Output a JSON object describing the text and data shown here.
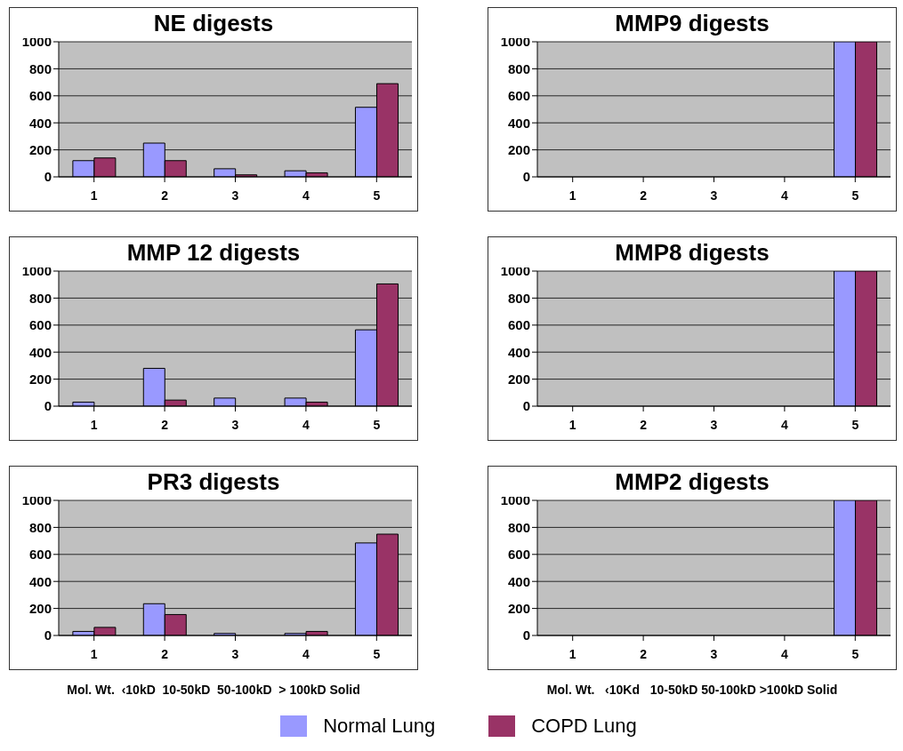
{
  "chart_data": [
    {
      "type": "bar",
      "title": "NE digests",
      "categories": [
        "1",
        "2",
        "3",
        "4",
        "5"
      ],
      "series": [
        {
          "color": "#9999ff",
          "values": [
            120,
            250,
            60,
            45,
            515
          ]
        },
        {
          "color": "#993366",
          "values": [
            140,
            120,
            15,
            30,
            690
          ]
        }
      ],
      "ylim": [
        0,
        1000
      ],
      "yticks": [
        0,
        200,
        400,
        600,
        800,
        1000
      ],
      "grid": "y"
    },
    {
      "type": "bar",
      "title": "MMP9 digests",
      "categories": [
        "1",
        "2",
        "3",
        "4",
        "5"
      ],
      "series": [
        {
          "color": "#9999ff",
          "values": [
            0,
            0,
            0,
            0,
            1000
          ]
        },
        {
          "color": "#993366",
          "values": [
            0,
            0,
            0,
            0,
            1000
          ]
        }
      ],
      "ylim": [
        0,
        1000
      ],
      "yticks": [
        0,
        200,
        400,
        600,
        800,
        1000
      ],
      "grid": "y"
    },
    {
      "type": "bar",
      "title": "MMP 12 digests",
      "categories": [
        "1",
        "2",
        "3",
        "4",
        "5"
      ],
      "series": [
        {
          "color": "#9999ff",
          "values": [
            30,
            280,
            60,
            60,
            565
          ]
        },
        {
          "color": "#993366",
          "values": [
            0,
            45,
            0,
            30,
            905
          ]
        }
      ],
      "ylim": [
        0,
        1000
      ],
      "yticks": [
        0,
        200,
        400,
        600,
        800,
        1000
      ],
      "grid": "y"
    },
    {
      "type": "bar",
      "title": "MMP8 digests",
      "categories": [
        "1",
        "2",
        "3",
        "4",
        "5"
      ],
      "series": [
        {
          "color": "#9999ff",
          "values": [
            0,
            0,
            0,
            0,
            1000
          ]
        },
        {
          "color": "#993366",
          "values": [
            0,
            0,
            0,
            0,
            1000
          ]
        }
      ],
      "ylim": [
        0,
        1000
      ],
      "yticks": [
        0,
        200,
        400,
        600,
        800,
        1000
      ],
      "grid": "y"
    },
    {
      "type": "bar",
      "title": "PR3 digests",
      "categories": [
        "1",
        "2",
        "3",
        "4",
        "5"
      ],
      "series": [
        {
          "color": "#9999ff",
          "values": [
            30,
            235,
            15,
            15,
            685
          ]
        },
        {
          "color": "#993366",
          "values": [
            60,
            155,
            0,
            30,
            750
          ]
        }
      ],
      "ylim": [
        0,
        1000
      ],
      "yticks": [
        0,
        200,
        400,
        600,
        800,
        1000
      ],
      "grid": "y",
      "annotations": [
        "Mol. Wt.  ‹10kD  10-50kD  50-100kD  > 100kD Solid"
      ]
    },
    {
      "type": "bar",
      "title": "MMP2 digests",
      "categories": [
        "1",
        "2",
        "3",
        "4",
        "5"
      ],
      "series": [
        {
          "name": "Normal Lung",
          "color": "#9999ff",
          "values": [
            0,
            0,
            0,
            0,
            1000
          ]
        },
        {
          "name": "COPD Lung",
          "color": "#993366",
          "values": [
            0,
            0,
            0,
            0,
            1000
          ]
        }
      ],
      "ylim": [
        0,
        1000
      ],
      "yticks": [
        0,
        200,
        400,
        600,
        800,
        1000
      ],
      "grid": "y",
      "legend": "bottom",
      "annotations": [
        "Mol. Wt.   ‹10Kd   10-50kD 50-100kD >100kD Solid"
      ]
    }
  ]
}
